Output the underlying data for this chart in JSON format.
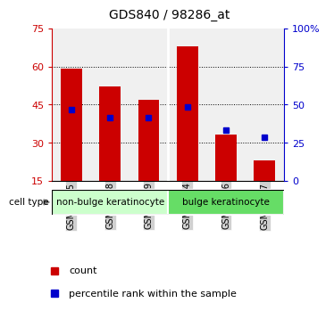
{
  "title": "GDS840 / 98286_at",
  "samples": [
    "GSM17445",
    "GSM17448",
    "GSM17449",
    "GSM17444",
    "GSM17446",
    "GSM17447"
  ],
  "count_values": [
    59,
    52,
    47,
    68,
    33,
    23
  ],
  "percentile_values": [
    43,
    40,
    40,
    44,
    35,
    32
  ],
  "ymin": 15,
  "ymax": 75,
  "yticks_left": [
    15,
    30,
    45,
    60,
    75
  ],
  "right_tick_positions": [
    15,
    30,
    45,
    60,
    75
  ],
  "right_tick_labels": [
    "0",
    "25",
    "50",
    "75",
    "100%"
  ],
  "bar_color": "#cc0000",
  "square_color": "#0000cc",
  "tick_color_left": "#cc0000",
  "tick_color_right": "#0000cc",
  "plot_bg_color": "#f0f0f0",
  "groups": [
    {
      "label": "non-bulge keratinocyte",
      "start": 0,
      "end": 3,
      "color": "#ccffcc"
    },
    {
      "label": "bulge keratinocyte",
      "start": 3,
      "end": 6,
      "color": "#66dd66"
    }
  ],
  "legend_count_label": "count",
  "legend_percentile_label": "percentile rank within the sample",
  "cell_type_label": "cell type",
  "bar_width": 0.55,
  "title_fontsize": 10,
  "tick_fontsize": 8,
  "label_fontsize": 8,
  "grid_ticks": [
    30,
    45,
    60
  ]
}
